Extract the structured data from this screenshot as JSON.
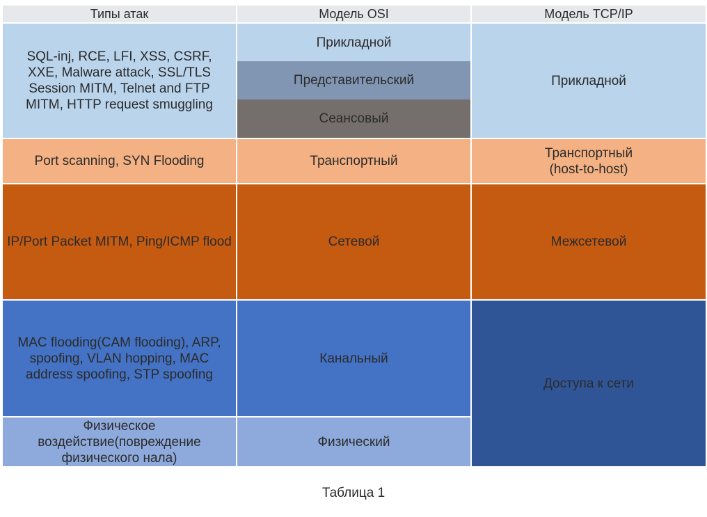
{
  "table": {
    "headers": [
      "Типы атак",
      "Модель OSI",
      "Модель TCP/IP"
    ],
    "attacks": {
      "application": "SQL-inj, RCE, LFI, XSS, CSRF, XXE, Malware attack, SSL/TLS Session MITM, Telnet and FTP MITM, HTTP request smuggling",
      "transport": "Port scanning, SYN Flooding",
      "network": "IP/Port Packet MITM, Ping/ICMP flood",
      "datalink": "MAC flooding(CAM flooding), ARP, spoofing, VLAN hopping, MAC address spoofing, STP spoofing",
      "physical": "Физическое воздействие(повреждение физического нала)"
    },
    "osi": {
      "application": "Прикладной",
      "presentation": "Представительский",
      "session": "Сеансовый",
      "transport": "Транспортный",
      "network": "Сетевой",
      "datalink": "Канальный",
      "physical": "Физический"
    },
    "tcpip": {
      "application": "Прикладной",
      "transport": "Транспортный (host-to-host)",
      "internet": "Межсетевой",
      "network_access": "Доступа к сети"
    }
  },
  "caption": "Таблица 1"
}
